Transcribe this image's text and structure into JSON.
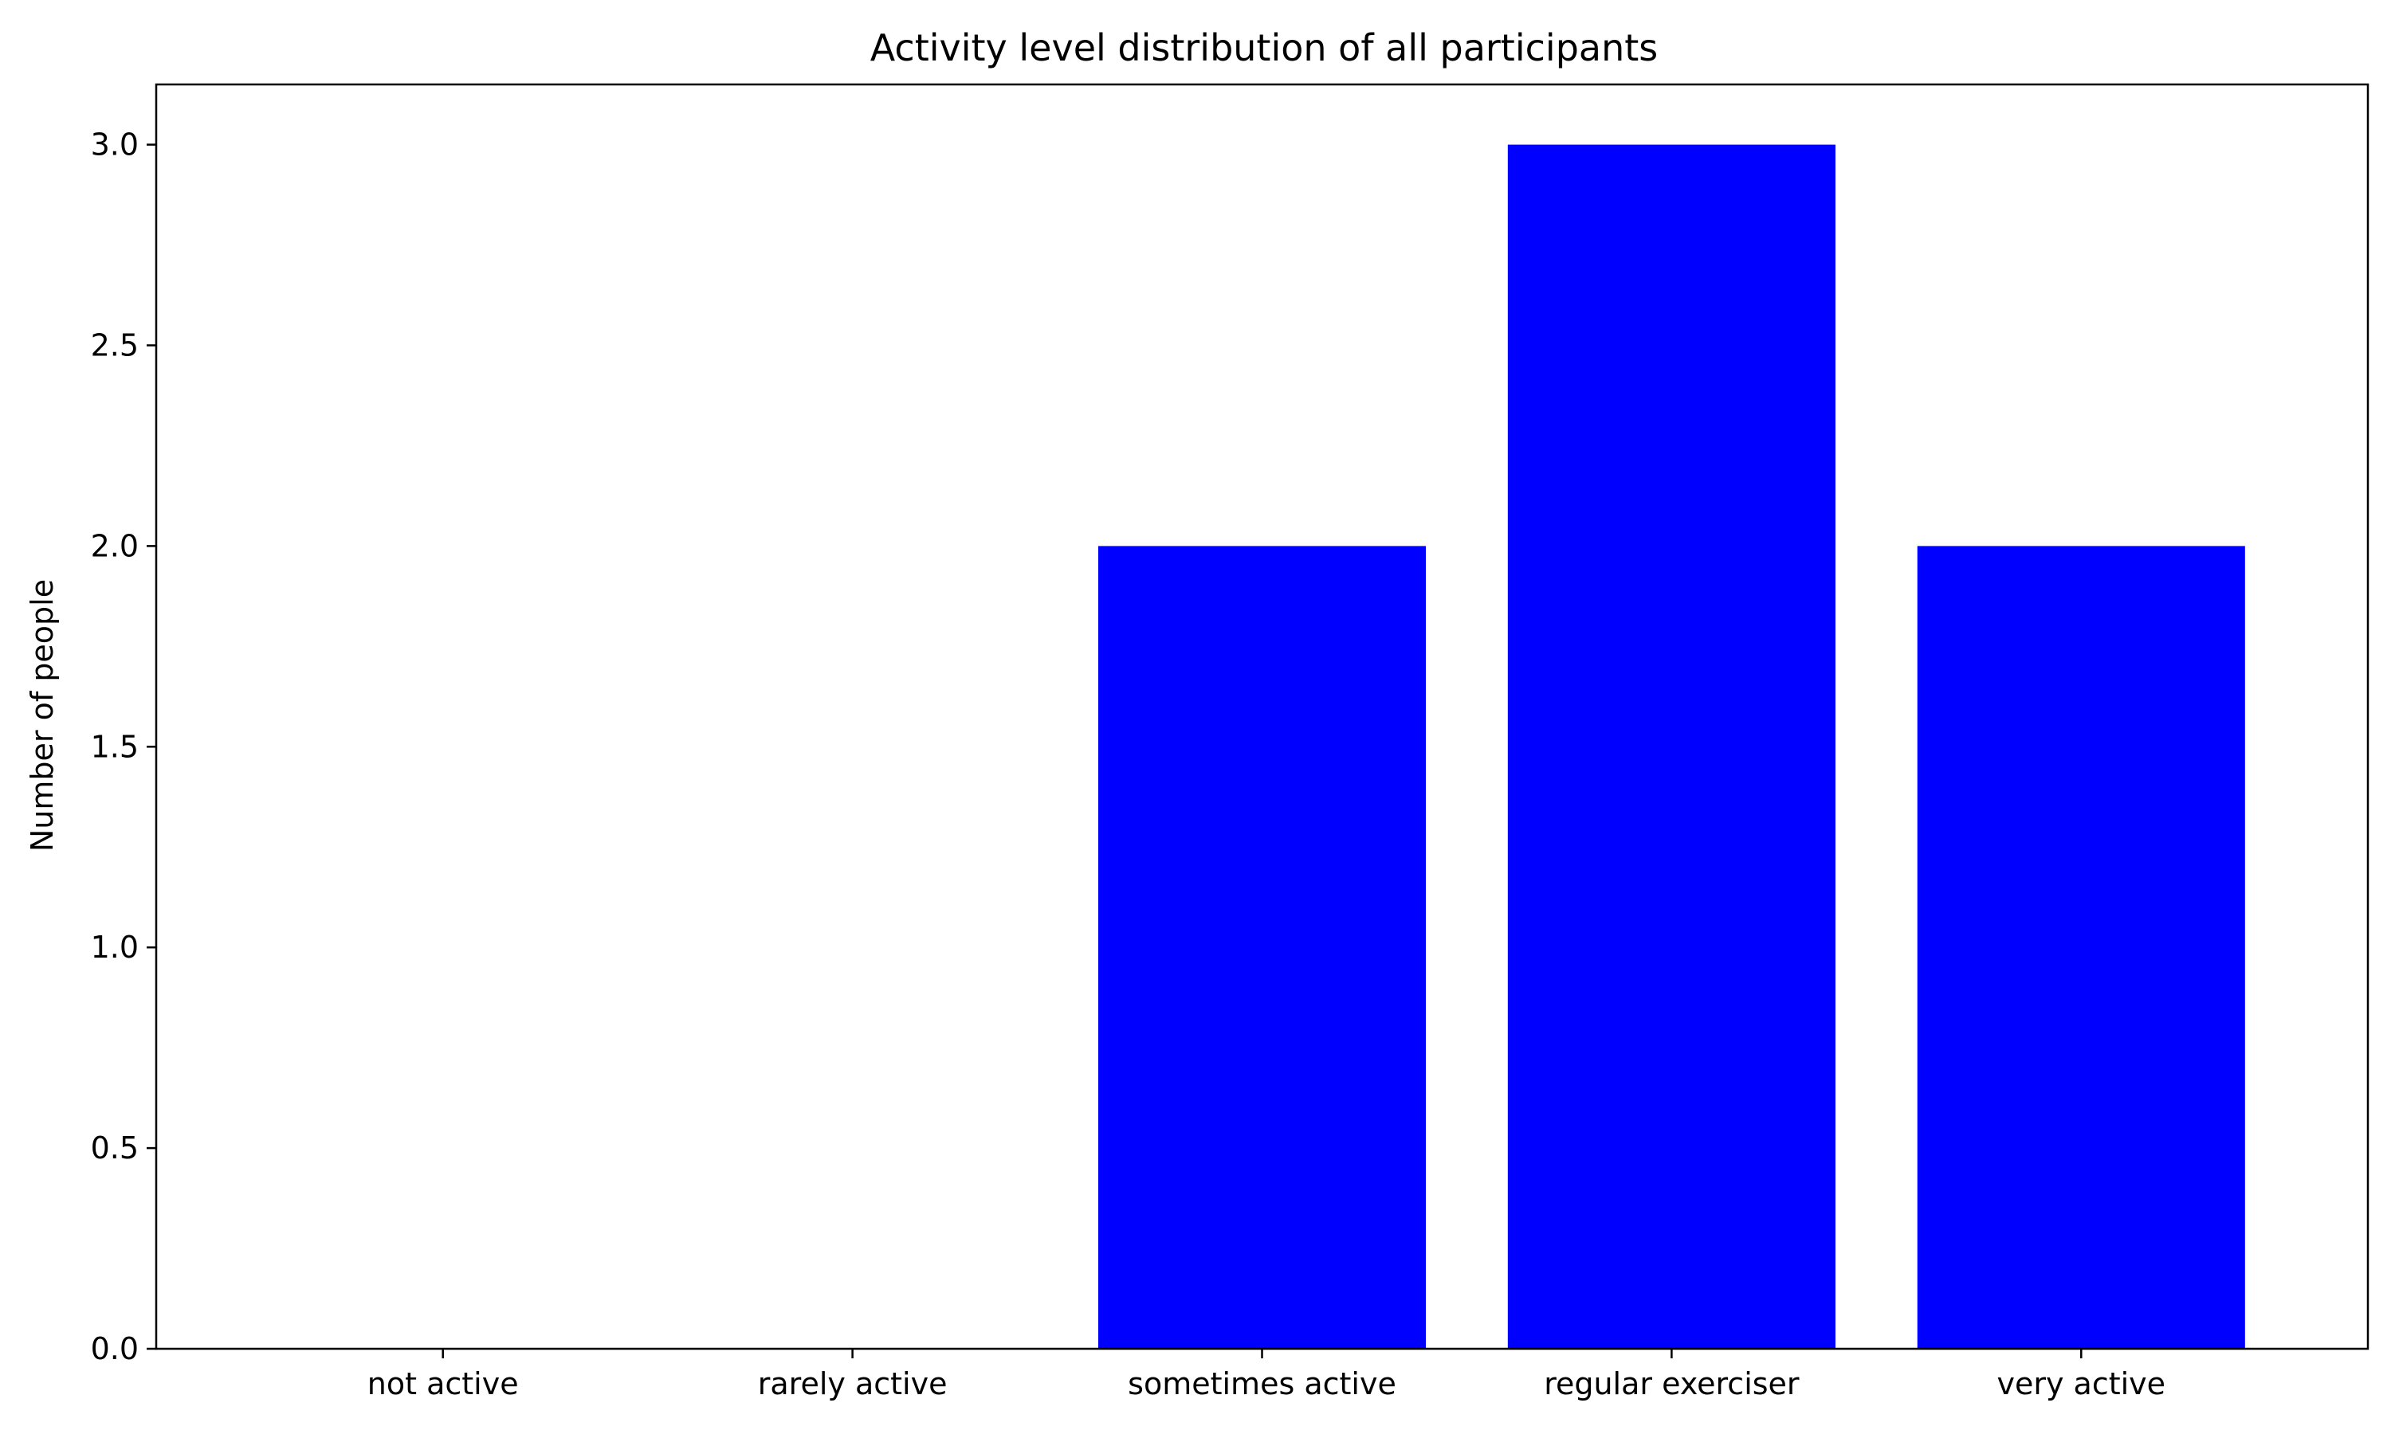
{
  "chart_data": {
    "type": "bar",
    "title": "Activity level distribution of all participants",
    "xlabel": "",
    "ylabel": "Number of people",
    "categories": [
      "not active",
      "rarely active",
      "sometimes active",
      "regular exerciser",
      "very active"
    ],
    "values": [
      0,
      0,
      2,
      3,
      2
    ],
    "ylim": [
      0,
      3.15
    ],
    "yticks": [
      0.0,
      0.5,
      1.0,
      1.5,
      2.0,
      2.5,
      3.0
    ],
    "ytick_labels": [
      "0.0",
      "0.5",
      "1.0",
      "1.5",
      "2.0",
      "2.5",
      "3.0"
    ],
    "bar_color": "#0000ff",
    "grid": false,
    "legend": "none"
  }
}
